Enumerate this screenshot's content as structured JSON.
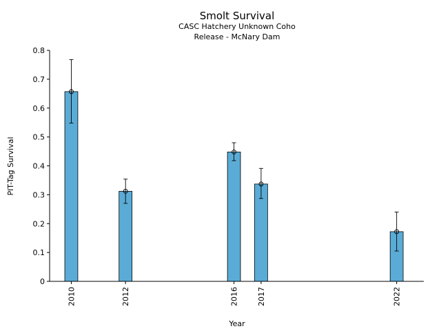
{
  "chart_data": {
    "type": "bar",
    "title": "Smolt Survival",
    "subtitle": [
      "CASC Hatchery Unknown Coho",
      "Release - McNary Dam"
    ],
    "xlabel": "Year",
    "ylabel": "PIT-Tag Survival",
    "x": [
      2010,
      2012,
      2016,
      2017,
      2022
    ],
    "values": [
      0.657,
      0.312,
      0.448,
      0.337,
      0.172
    ],
    "error_low": [
      0.548,
      0.27,
      0.418,
      0.287,
      0.105
    ],
    "error_high": [
      0.768,
      0.354,
      0.48,
      0.391,
      0.24
    ],
    "yticks": [
      "0",
      "0.1",
      "0.2",
      "0.3",
      "0.4",
      "0.5",
      "0.6",
      "0.7",
      "0.8"
    ],
    "ylim": [
      0,
      0.8
    ],
    "xlim": [
      2009.2,
      2023.0
    ],
    "bar_color": "#5aacd6",
    "grid": false
  }
}
